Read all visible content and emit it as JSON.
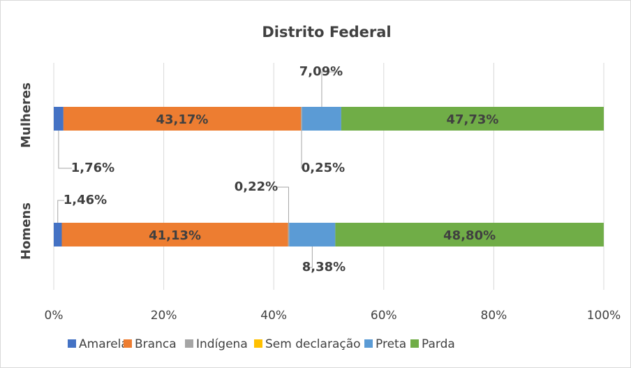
{
  "chart_data": {
    "type": "stacked-bar-horizontal",
    "title": "Distrito Federal",
    "categories": [
      "Mulheres",
      "Homens"
    ],
    "series": [
      {
        "name": "Amarela",
        "color": "#4472c4",
        "values": [
          1.76,
          1.46
        ],
        "value_labels": [
          "1,76%",
          "1,46%"
        ]
      },
      {
        "name": "Branca",
        "color": "#ed7d31",
        "values": [
          43.17,
          41.13
        ],
        "value_labels": [
          "43,17%",
          "41,13%"
        ]
      },
      {
        "name": "Indígena",
        "color": "#a5a5a5",
        "values": [
          0.25,
          0.22
        ],
        "value_labels": [
          "0,25%",
          "0,22%"
        ]
      },
      {
        "name": "Sem declaração",
        "color": "#ffc000",
        "values": [
          0,
          0
        ],
        "value_labels": [
          null,
          null
        ]
      },
      {
        "name": "Preta",
        "color": "#5b9bd5",
        "values": [
          7.09,
          8.38
        ],
        "value_labels": [
          "7,09%",
          "8,38%"
        ]
      },
      {
        "name": "Parda",
        "color": "#70ad47",
        "values": [
          47.73,
          48.8
        ],
        "value_labels": [
          "47,73%",
          "48,80%"
        ]
      }
    ],
    "xlim": [
      0,
      100
    ],
    "xticks": [
      {
        "value": 0,
        "label": "0%"
      },
      {
        "value": 20,
        "label": "20%"
      },
      {
        "value": 40,
        "label": "40%"
      },
      {
        "value": 60,
        "label": "60%"
      },
      {
        "value": 80,
        "label": "80%"
      },
      {
        "value": 100,
        "label": "100%"
      }
    ],
    "grid": true,
    "legend": "bottom"
  }
}
